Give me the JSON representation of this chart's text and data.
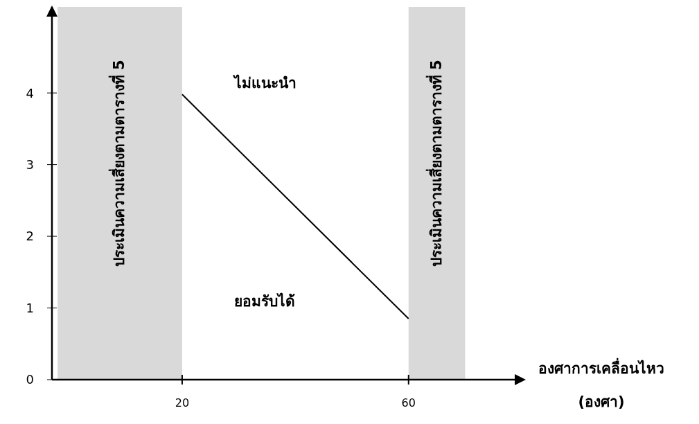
{
  "chart_data": {
    "type": "line",
    "xlabel": "องศาการเคลื่อนไหว (องศา)",
    "xlim": [
      -3,
      79
    ],
    "xticks": [
      20,
      60
    ],
    "ylim": [
      0,
      5.2
    ],
    "yticks": [
      0,
      1,
      2,
      3,
      4
    ],
    "grid": false,
    "marker": "none",
    "line_style": "solid",
    "series": [
      {
        "x": [
          20,
          60
        ],
        "values": [
          3.98,
          0.85
        ],
        "color": "#000000"
      }
    ],
    "bands": [
      {
        "axis": "x",
        "from": -2,
        "to": 20,
        "label": "ประเมินความเสี่ยงตามตารางที่ 5",
        "color": "#d9d9d9"
      },
      {
        "axis": "x",
        "from": 60,
        "to": 70,
        "label": "ประเมินความเสี่ยงตามตารางที่ 5",
        "color": "#d9d9d9"
      }
    ],
    "annotations": [
      "ไม่แนะนำ",
      "ยอมรับได้"
    ]
  }
}
